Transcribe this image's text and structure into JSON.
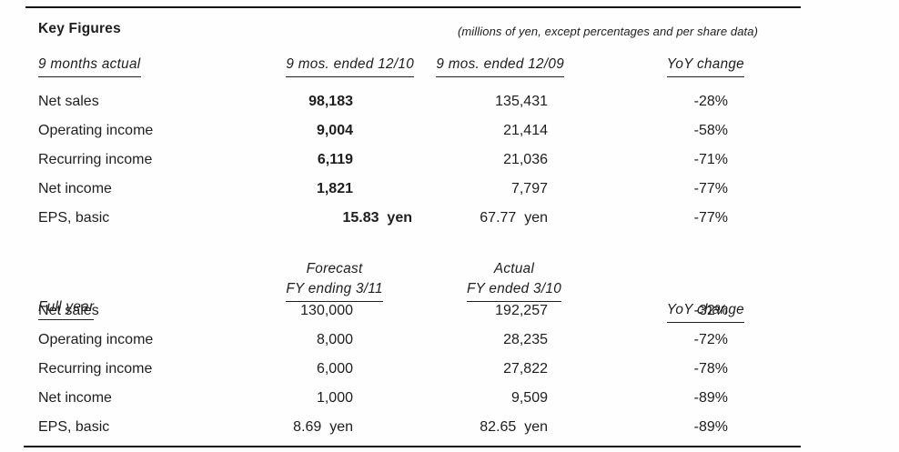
{
  "title": "Key Figures",
  "units_note": "(millions of yen, except percentages and per share data)",
  "colors": {
    "text": "#1e1e1e",
    "rule": "#111111",
    "background": "#fefefe"
  },
  "sections": [
    {
      "name": "9 months actual",
      "col1_header": "9 mos. ended 12/10",
      "col2_header": "9 mos. ended 12/09",
      "col3_header": "YoY change",
      "rows": [
        {
          "label": "Net sales",
          "col1": "98,183",
          "col2": "135,431",
          "yoy": "-28%"
        },
        {
          "label": "Operating income",
          "col1": "9,004",
          "col2": "21,414",
          "yoy": "-58%"
        },
        {
          "label": "Recurring income",
          "col1": "6,119",
          "col2": "21,036",
          "yoy": "-71%"
        },
        {
          "label": "Net income",
          "col1": "1,821",
          "col2": "7,797",
          "yoy": "-77%"
        },
        {
          "label": "EPS, basic",
          "col1": "15.83  yen",
          "col2": "67.77  yen",
          "yoy": "-77%"
        }
      ]
    },
    {
      "name": "Full year",
      "col1_header_top": "Forecast",
      "col1_header": "FY ending 3/11",
      "col2_header_top": "Actual",
      "col2_header": "FY ended 3/10",
      "col3_header": "YoY change",
      "rows": [
        {
          "label": "Net sales",
          "col1": "130,000",
          "col2": "192,257",
          "yoy": "-32%"
        },
        {
          "label": "Operating income",
          "col1": "8,000",
          "col2": "28,235",
          "yoy": "-72%"
        },
        {
          "label": "Recurring income",
          "col1": "6,000",
          "col2": "27,822",
          "yoy": "-78%"
        },
        {
          "label": "Net income",
          "col1": "1,000",
          "col2": "9,509",
          "yoy": "-89%"
        },
        {
          "label": "EPS, basic",
          "col1": "8.69  yen",
          "col2": "82.65  yen",
          "yoy": "-89%"
        }
      ]
    }
  ]
}
